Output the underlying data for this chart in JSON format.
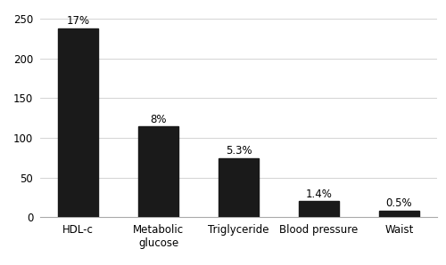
{
  "categories": [
    "HDL-c",
    "Metabolic\nglucose",
    "Triglyceride",
    "Blood pressure",
    "Waist"
  ],
  "values": [
    238,
    114,
    74,
    20,
    8
  ],
  "labels": [
    "17%",
    "8%",
    "5.3%",
    "1.4%",
    "0.5%"
  ],
  "bar_color": "#1a1a1a",
  "ylim": [
    0,
    260
  ],
  "yticks": [
    0,
    50,
    100,
    150,
    200,
    250
  ],
  "background_color": "#ffffff",
  "label_fontsize": 8.5,
  "tick_fontsize": 8.5,
  "bar_width": 0.5,
  "grid_color": "#cccccc",
  "grid_linewidth": 0.6
}
